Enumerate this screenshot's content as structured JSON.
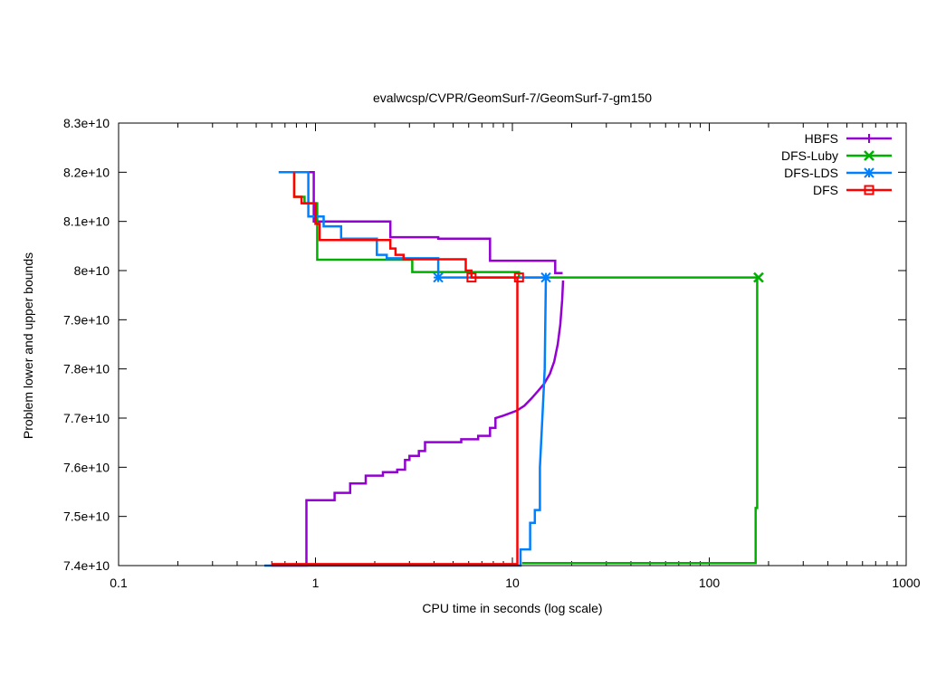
{
  "chart_data": {
    "type": "line",
    "title": "evalwcsp/CVPR/GeomSurf-7/GeomSurf-7-gm150",
    "xlabel": "CPU time in seconds (log scale)",
    "ylabel": "Problem lower and upper bounds",
    "xscale": "log",
    "xlim": [
      0.1,
      1000
    ],
    "ylim": [
      74000000000,
      83000000000
    ],
    "xticks": [
      {
        "value": 0.1,
        "label": "0.1"
      },
      {
        "value": 1,
        "label": "1"
      },
      {
        "value": 10,
        "label": "10"
      },
      {
        "value": 100,
        "label": "100"
      },
      {
        "value": 1000,
        "label": "1000"
      }
    ],
    "yticks": [
      {
        "value": 74000000000,
        "label": "7.4e+10"
      },
      {
        "value": 75000000000,
        "label": "7.5e+10"
      },
      {
        "value": 76000000000,
        "label": "7.6e+10"
      },
      {
        "value": 77000000000,
        "label": "7.7e+10"
      },
      {
        "value": 78000000000,
        "label": "7.8e+10"
      },
      {
        "value": 79000000000,
        "label": "7.9e+10"
      },
      {
        "value": 80000000000,
        "label": "8e+10"
      },
      {
        "value": 81000000000,
        "label": "8.1e+10"
      },
      {
        "value": 82000000000,
        "label": "8.2e+10"
      },
      {
        "value": 83000000000,
        "label": "8.3e+10"
      }
    ],
    "grid": false,
    "legend_position": "top-right",
    "series": [
      {
        "name": "HBFS",
        "color": "#9400d3",
        "marker": "plus",
        "upper": [
          [
            0.93,
            82000000000
          ],
          [
            0.98,
            82000000000
          ],
          [
            0.98,
            81000000000
          ],
          [
            2.4,
            81000000000
          ],
          [
            2.4,
            80680000000
          ],
          [
            4.2,
            80680000000
          ],
          [
            4.2,
            80650000000
          ],
          [
            7.7,
            80650000000
          ],
          [
            7.7,
            80200000000
          ],
          [
            16.5,
            80200000000
          ],
          [
            16.5,
            79950000000
          ],
          [
            18.0,
            79950000000
          ]
        ],
        "lower": [
          [
            0.6,
            74000000000
          ],
          [
            0.9,
            74000000000
          ],
          [
            0.9,
            75330000000
          ],
          [
            1.25,
            75330000000
          ],
          [
            1.25,
            75480000000
          ],
          [
            1.5,
            75480000000
          ],
          [
            1.5,
            75670000000
          ],
          [
            1.8,
            75670000000
          ],
          [
            1.8,
            75830000000
          ],
          [
            2.2,
            75830000000
          ],
          [
            2.2,
            75900000000
          ],
          [
            2.6,
            75900000000
          ],
          [
            2.6,
            75950000000
          ],
          [
            2.85,
            75950000000
          ],
          [
            2.85,
            76150000000
          ],
          [
            3.0,
            76150000000
          ],
          [
            3.0,
            76230000000
          ],
          [
            3.35,
            76230000000
          ],
          [
            3.35,
            76330000000
          ],
          [
            3.6,
            76330000000
          ],
          [
            3.6,
            76510000000
          ],
          [
            5.5,
            76510000000
          ],
          [
            5.5,
            76570000000
          ],
          [
            6.7,
            76570000000
          ],
          [
            6.7,
            76640000000
          ],
          [
            7.7,
            76640000000
          ],
          [
            7.7,
            76800000000
          ],
          [
            8.2,
            76800000000
          ],
          [
            8.2,
            77000000000
          ],
          [
            9.0,
            77050000000
          ],
          [
            10.5,
            77150000000
          ],
          [
            11.5,
            77250000000
          ],
          [
            12.5,
            77400000000
          ],
          [
            13.5,
            77550000000
          ],
          [
            14.5,
            77700000000
          ],
          [
            15.5,
            77900000000
          ],
          [
            16.3,
            78150000000
          ],
          [
            17.0,
            78500000000
          ],
          [
            17.5,
            78900000000
          ],
          [
            17.9,
            79400000000
          ],
          [
            18.1,
            79800000000
          ]
        ]
      },
      {
        "name": "DFS-Luby",
        "color": "#00b000",
        "marker": "x",
        "upper": [
          [
            0.78,
            82000000000
          ],
          [
            0.78,
            81500000000
          ],
          [
            0.88,
            81500000000
          ],
          [
            0.88,
            81370000000
          ],
          [
            1.02,
            81370000000
          ],
          [
            1.02,
            80220000000
          ],
          [
            3.1,
            80220000000
          ],
          [
            3.1,
            79970000000
          ],
          [
            10.8,
            79970000000
          ],
          [
            10.8,
            79860000000
          ],
          [
            178,
            79860000000
          ]
        ],
        "lower": [
          [
            11.2,
            74050000000
          ],
          [
            172,
            74050000000
          ],
          [
            172,
            75170000000
          ],
          [
            175,
            75170000000
          ],
          [
            175,
            79860000000
          ]
        ],
        "markers": [
          [
            178,
            79860000000
          ]
        ]
      },
      {
        "name": "DFS-LDS",
        "color": "#0080ff",
        "marker": "star",
        "upper": [
          [
            0.65,
            82000000000
          ],
          [
            0.92,
            82000000000
          ],
          [
            0.92,
            81100000000
          ],
          [
            1.1,
            81100000000
          ],
          [
            1.1,
            80900000000
          ],
          [
            1.35,
            80900000000
          ],
          [
            1.35,
            80650000000
          ],
          [
            2.05,
            80650000000
          ],
          [
            2.05,
            80320000000
          ],
          [
            2.3,
            80320000000
          ],
          [
            2.3,
            80250000000
          ],
          [
            4.2,
            80250000000
          ],
          [
            4.2,
            80120000000
          ],
          [
            4.2,
            79860000000
          ],
          [
            14.8,
            79860000000
          ]
        ],
        "lower": [
          [
            0.55,
            74000000000
          ],
          [
            11.0,
            74000000000
          ],
          [
            11.0,
            74330000000
          ],
          [
            12.3,
            74330000000
          ],
          [
            12.3,
            74870000000
          ],
          [
            13.0,
            74870000000
          ],
          [
            13.0,
            75130000000
          ],
          [
            13.8,
            75130000000
          ],
          [
            13.8,
            76000000000
          ],
          [
            14.2,
            77000000000
          ],
          [
            14.6,
            78000000000
          ],
          [
            14.8,
            79860000000
          ]
        ],
        "markers": [
          [
            4.2,
            79860000000
          ],
          [
            14.8,
            79860000000
          ]
        ]
      },
      {
        "name": "DFS",
        "color": "#ff0000",
        "marker": "square",
        "upper": [
          [
            0.78,
            82000000000
          ],
          [
            0.78,
            81500000000
          ],
          [
            0.85,
            81500000000
          ],
          [
            0.85,
            81370000000
          ],
          [
            1.0,
            81370000000
          ],
          [
            1.0,
            80950000000
          ],
          [
            1.05,
            80950000000
          ],
          [
            1.05,
            80620000000
          ],
          [
            2.4,
            80620000000
          ],
          [
            2.4,
            80450000000
          ],
          [
            2.55,
            80450000000
          ],
          [
            2.55,
            80320000000
          ],
          [
            2.8,
            80320000000
          ],
          [
            2.8,
            80230000000
          ],
          [
            5.8,
            80230000000
          ],
          [
            5.8,
            80000000000
          ],
          [
            6.2,
            80000000000
          ],
          [
            6.2,
            79860000000
          ],
          [
            10.8,
            79860000000
          ]
        ],
        "lower": [
          [
            0.6,
            74030000000
          ],
          [
            10.6,
            74030000000
          ],
          [
            10.6,
            79860000000
          ],
          [
            10.8,
            79860000000
          ]
        ],
        "markers": [
          [
            6.2,
            79860000000
          ],
          [
            10.8,
            79860000000
          ]
        ]
      }
    ]
  }
}
